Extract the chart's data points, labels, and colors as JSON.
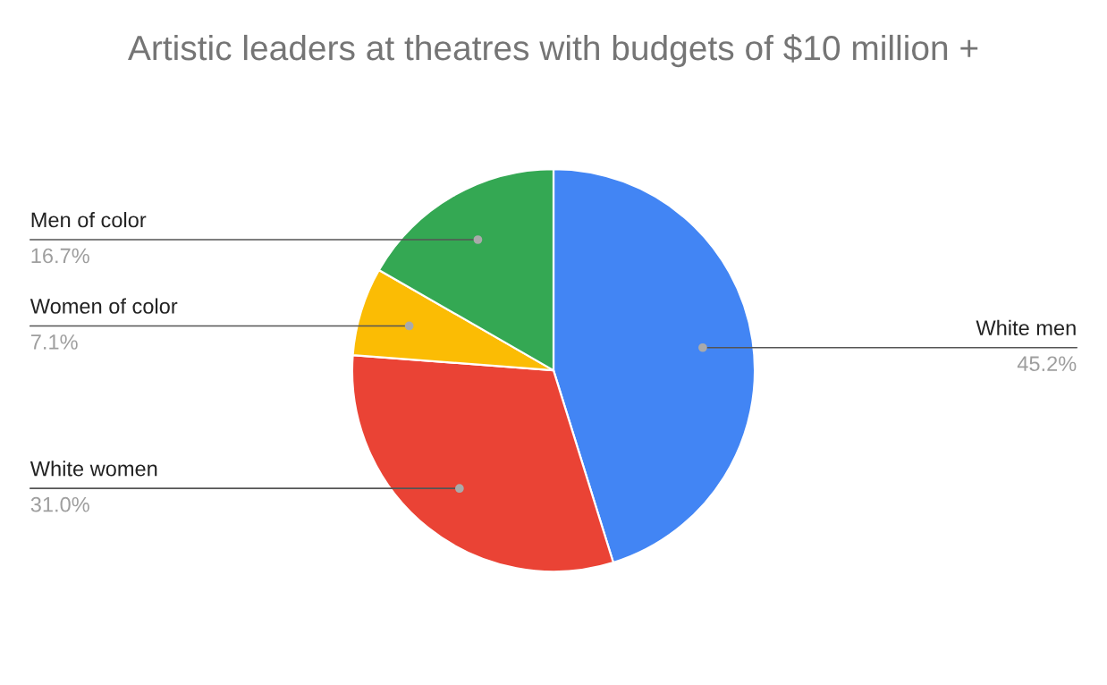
{
  "chart_data": {
    "type": "pie",
    "title": "Artistic leaders at theatres with budgets of $10 million +",
    "categories": [
      "White men",
      "White women",
      "Women of color",
      "Men of color"
    ],
    "values": [
      45.2,
      31.0,
      7.1,
      16.7
    ],
    "value_labels": [
      "45.2%",
      "31.0%",
      "7.1%",
      "16.7%"
    ],
    "colors": [
      "#4285f4",
      "#ea4335",
      "#fbbc04",
      "#34a853"
    ],
    "legend": false
  }
}
